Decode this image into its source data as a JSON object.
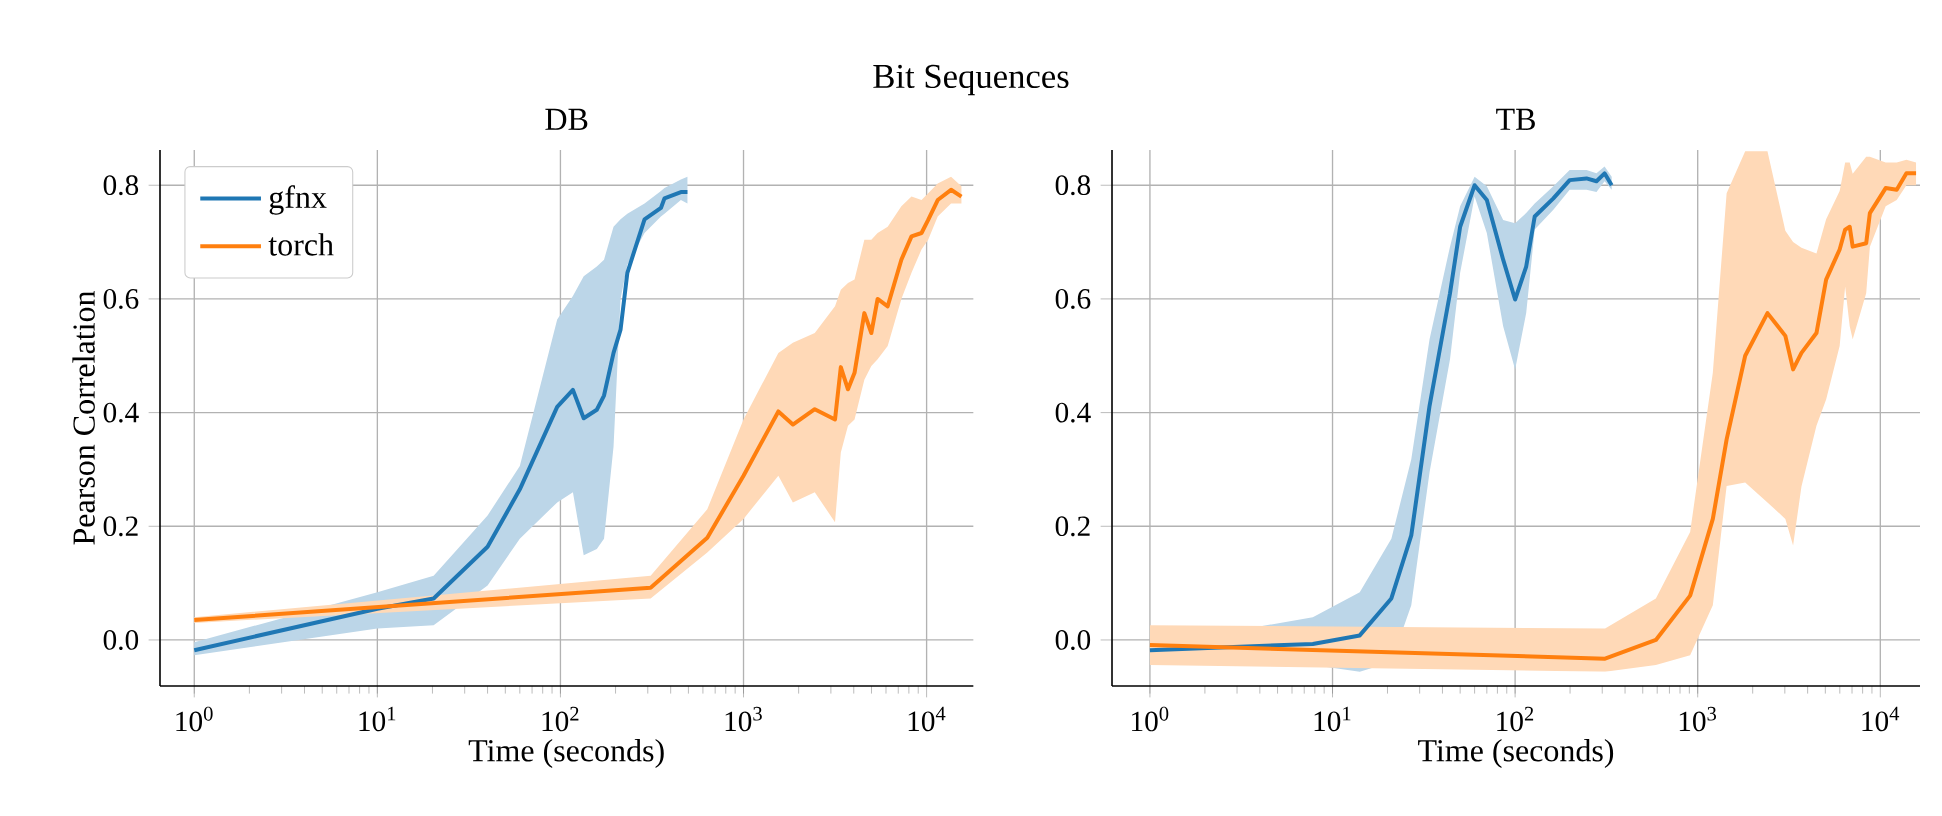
{
  "chart_data": [
    {
      "type": "line",
      "title": "DB",
      "xlabel": "Time (seconds)",
      "ylabel": "Pearson Correlation",
      "annotations": [
        "Bit Sequences"
      ],
      "log": "x",
      "grid": true,
      "legend": "top left",
      "xlim": [
        0.65,
        18000
      ],
      "xticks": [
        {
          "value": 1,
          "label": "10$^{0}$"
        },
        {
          "value": 10,
          "label": "10$^{1}$"
        },
        {
          "value": 100,
          "label": "10$^{2}$"
        },
        {
          "value": 1000,
          "label": "10$^{3}$"
        },
        {
          "value": 10000,
          "label": "10$^{4}$"
        }
      ],
      "ylim": [
        -0.081,
        0.862
      ],
      "yticks": [
        {
          "value": 0,
          "label": "0.0"
        },
        {
          "value": 0.2,
          "label": "0.2"
        },
        {
          "value": 0.4,
          "label": "0.4"
        },
        {
          "value": 0.6,
          "label": "0.6"
        },
        {
          "value": 0.8,
          "label": "0.8"
        }
      ],
      "series": [
        {
          "name": "gfnx",
          "color": "#1f77b4",
          "x": [
            1,
            10,
            20.3,
            40,
            60,
            96,
            117,
            134,
            158,
            173,
            195,
            213,
            232,
            288,
            354,
            370,
            455,
            494
          ],
          "values": [
            -0.018,
            0.055,
            0.073,
            0.164,
            0.265,
            0.41,
            0.44,
            0.39,
            0.405,
            0.43,
            0.505,
            0.546,
            0.646,
            0.74,
            0.76,
            0.777,
            0.788,
            0.788
          ],
          "lower": [
            -0.027,
            0.02,
            0.026,
            0.096,
            0.178,
            0.242,
            0.26,
            0.149,
            0.16,
            0.178,
            0.34,
            0.6,
            0.66,
            0.716,
            0.745,
            0.75,
            0.774,
            0.768
          ],
          "upper": [
            -0.004,
            0.084,
            0.113,
            0.219,
            0.306,
            0.564,
            0.605,
            0.64,
            0.657,
            0.669,
            0.727,
            0.74,
            0.75,
            0.768,
            0.79,
            0.795,
            0.81,
            0.815
          ]
        },
        {
          "name": "torch",
          "color": "#ff7f0e",
          "x": [
            1,
            311,
            634,
            1000,
            1550,
            1860,
            2450,
            3160,
            3400,
            3720,
            4040,
            4570,
            4990,
            5400,
            6130,
            7280,
            8270,
            9380,
            10200,
            11500,
            13600,
            15500
          ],
          "values": [
            0.035,
            0.092,
            0.18,
            0.289,
            0.402,
            0.379,
            0.406,
            0.388,
            0.48,
            0.441,
            0.47,
            0.575,
            0.54,
            0.6,
            0.587,
            0.669,
            0.71,
            0.716,
            0.739,
            0.774,
            0.792,
            0.78
          ],
          "lower": [
            0.03,
            0.073,
            0.154,
            0.213,
            0.289,
            0.242,
            0.26,
            0.207,
            0.33,
            0.377,
            0.388,
            0.458,
            0.482,
            0.494,
            0.517,
            0.6,
            0.646,
            0.687,
            0.704,
            0.745,
            0.768,
            0.768
          ],
          "upper": [
            0.04,
            0.113,
            0.23,
            0.388,
            0.505,
            0.523,
            0.54,
            0.587,
            0.616,
            0.628,
            0.634,
            0.704,
            0.704,
            0.716,
            0.727,
            0.763,
            0.78,
            0.774,
            0.786,
            0.803,
            0.815,
            0.798
          ]
        }
      ]
    },
    {
      "type": "line",
      "title": "TB",
      "xlabel": "Time (seconds)",
      "log": "x",
      "grid": true,
      "xlim": [
        0.62,
        16500
      ],
      "xticks": [
        {
          "value": 1,
          "label": "10$^{0}$"
        },
        {
          "value": 10,
          "label": "10$^{1}$"
        },
        {
          "value": 100,
          "label": "10$^{2}$"
        },
        {
          "value": 1000,
          "label": "10$^{3}$"
        },
        {
          "value": 10000,
          "label": "10$^{4}$"
        }
      ],
      "ylim": [
        -0.081,
        0.862
      ],
      "yticks": [
        {
          "value": 0,
          "label": "0.0"
        },
        {
          "value": 0.2,
          "label": "0.2"
        },
        {
          "value": 0.4,
          "label": "0.4"
        },
        {
          "value": 0.6,
          "label": "0.6"
        },
        {
          "value": 0.8,
          "label": "0.8"
        }
      ],
      "series": [
        {
          "color": "#1f77b4",
          "x": [
            1,
            7.8,
            14.1,
            21,
            27,
            34,
            44,
            50,
            60,
            70,
            86,
            100,
            115,
            128,
            162,
            199,
            246,
            279,
            309,
            338
          ],
          "values": [
            -0.018,
            -0.007,
            0.008,
            0.073,
            0.184,
            0.412,
            0.61,
            0.727,
            0.8,
            0.774,
            0.669,
            0.599,
            0.657,
            0.745,
            0.777,
            0.809,
            0.812,
            0.807,
            0.821,
            0.8
          ],
          "lower": [
            -0.035,
            -0.044,
            -0.056,
            -0.039,
            0.061,
            0.295,
            0.494,
            0.646,
            0.78,
            0.716,
            0.552,
            0.476,
            0.575,
            0.722,
            0.757,
            0.792,
            0.792,
            0.788,
            0.807,
            0.792
          ],
          "upper": [
            -0.01,
            0.04,
            0.084,
            0.178,
            0.318,
            0.529,
            0.692,
            0.763,
            0.815,
            0.798,
            0.739,
            0.733,
            0.751,
            0.768,
            0.798,
            0.827,
            0.827,
            0.821,
            0.833,
            0.815
          ]
        },
        {
          "color": "#ff7f0e",
          "x": [
            1,
            311,
            590,
            909,
            1210,
            1440,
            1820,
            2410,
            3020,
            3330,
            3700,
            4470,
            5050,
            5990,
            6420,
            6800,
            7060,
            8370,
            8770,
            10700,
            12300,
            13900,
            15700
          ],
          "values": [
            -0.009,
            -0.033,
            0.0,
            0.078,
            0.213,
            0.353,
            0.5,
            0.575,
            0.535,
            0.476,
            0.505,
            0.54,
            0.634,
            0.687,
            0.722,
            0.727,
            0.692,
            0.698,
            0.751,
            0.795,
            0.792,
            0.821,
            0.821
          ],
          "lower": [
            -0.044,
            -0.056,
            -0.044,
            -0.027,
            0.061,
            0.271,
            0.277,
            0.242,
            0.213,
            0.166,
            0.27,
            0.377,
            0.423,
            0.517,
            0.622,
            0.552,
            0.529,
            0.61,
            0.692,
            0.763,
            0.774,
            0.8,
            0.8
          ],
          "upper": [
            0.026,
            0.02,
            0.073,
            0.19,
            0.47,
            0.786,
            0.86,
            0.86,
            0.72,
            0.7,
            0.69,
            0.68,
            0.74,
            0.79,
            0.84,
            0.84,
            0.82,
            0.85,
            0.85,
            0.84,
            0.84,
            0.845,
            0.84
          ]
        }
      ]
    }
  ]
}
